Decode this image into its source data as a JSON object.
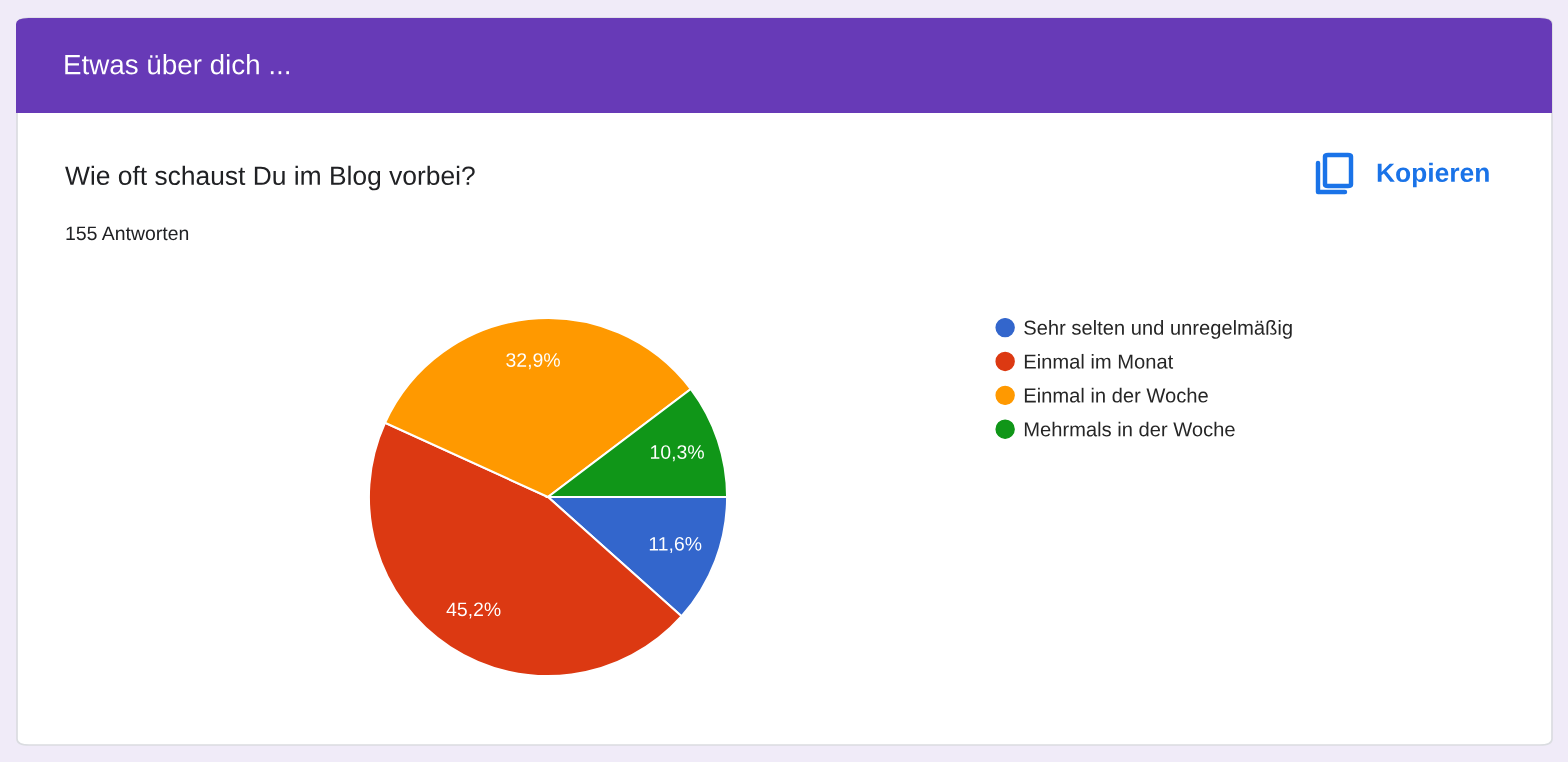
{
  "chart_data": {
    "type": "pie",
    "title": "Wie oft schaust Du im Blog vorbei?",
    "subtitle": "155 Antworten",
    "annotations": [
      "Etwas über dich ...",
      "Kopieren"
    ],
    "categories": [
      "Sehr selten und unregelmäßig",
      "Einmal im Monat",
      "Einmal in der Woche",
      "Mehrmals in der Woche"
    ],
    "values": [
      11.6,
      45.2,
      32.9,
      10.3
    ],
    "value_labels": [
      "11,6%",
      "45,2%",
      "32,9%",
      "10,3%"
    ],
    "colors": [
      "#3366cc",
      "#dc3912",
      "#ff9900",
      "#109618"
    ],
    "legend": "right"
  }
}
